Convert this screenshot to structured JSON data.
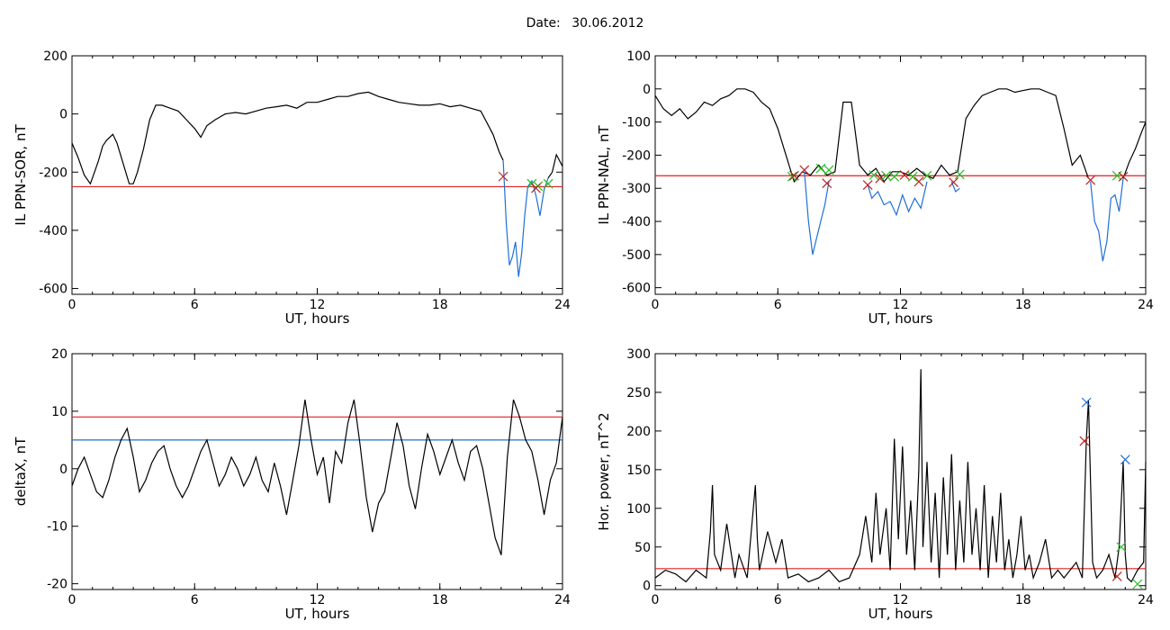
{
  "page": {
    "date_label": "Date:",
    "date_value": "30.06.2012"
  },
  "chart_data": [
    {
      "id": "ppn-sor",
      "type": "line",
      "title": "",
      "xlabel": "UT, hours",
      "ylabel": "IL PPN-SOR, nT",
      "xlim": [
        0,
        24
      ],
      "ylim": [
        -620,
        200
      ],
      "xticks": [
        0,
        6,
        12,
        18,
        24
      ],
      "yticks": [
        200,
        0,
        -200,
        -400,
        -600
      ],
      "series": [
        {
          "color": "#000000",
          "x": [
            0,
            0.3,
            0.6,
            0.9,
            1.1,
            1.3,
            1.5,
            1.7,
            2.0,
            2.2,
            2.5,
            2.8,
            3.0,
            3.2,
            3.5,
            3.8,
            4.1,
            4.4,
            4.8,
            5.2,
            5.6,
            6.0,
            6.3,
            6.6,
            7.0,
            7.5,
            8.0,
            8.5,
            9.0,
            9.5,
            10.0,
            10.5,
            11.0,
            11.5,
            12.0,
            12.5,
            13.0,
            13.5,
            14.0,
            14.5,
            15.0,
            15.5,
            16.0,
            16.5,
            17.0,
            17.5,
            18.0,
            18.5,
            19.0,
            19.5,
            20.0,
            20.3,
            20.6,
            20.9,
            21.1
          ],
          "y": [
            -100,
            -150,
            -210,
            -240,
            -200,
            -160,
            -110,
            -90,
            -70,
            -100,
            -170,
            -240,
            -240,
            -200,
            -120,
            -20,
            30,
            30,
            20,
            10,
            -20,
            -50,
            -80,
            -40,
            -20,
            0,
            5,
            0,
            10,
            20,
            25,
            30,
            20,
            40,
            40,
            50,
            60,
            60,
            70,
            75,
            60,
            50,
            40,
            35,
            30,
            30,
            35,
            25,
            30,
            20,
            10,
            -30,
            -70,
            -130,
            -160
          ]
        },
        {
          "color": "#1f6fd6",
          "x": [
            21.1,
            21.25,
            21.4,
            21.55,
            21.7,
            21.85,
            22.0,
            22.15,
            22.3,
            22.5,
            22.7,
            22.9,
            23.1,
            23.3
          ],
          "y": [
            -160,
            -380,
            -520,
            -490,
            -440,
            -560,
            -480,
            -350,
            -250,
            -230,
            -280,
            -350,
            -260,
            -220
          ]
        },
        {
          "color": "#000000",
          "x": [
            23.3,
            23.5,
            23.7,
            24.0
          ],
          "y": [
            -220,
            -200,
            -140,
            -180
          ]
        }
      ],
      "hlines": [
        {
          "y": -250,
          "color": "#e02020"
        }
      ],
      "markers": [
        {
          "x": 21.1,
          "y": -215,
          "color": "#c02020"
        },
        {
          "x": 22.5,
          "y": -240,
          "color": "#20c020"
        },
        {
          "x": 22.8,
          "y": -248,
          "color": "#20c020"
        },
        {
          "x": 23.3,
          "y": -240,
          "color": "#20c020"
        },
        {
          "x": 22.7,
          "y": -255,
          "color": "#c02020"
        }
      ]
    },
    {
      "id": "ppn-nal",
      "type": "line",
      "title": "",
      "xlabel": "UT, hours",
      "ylabel": "IL PPN-NAL, nT",
      "xlim": [
        0,
        24
      ],
      "ylim": [
        -620,
        100
      ],
      "xticks": [
        0,
        6,
        12,
        18,
        24
      ],
      "yticks": [
        100,
        0,
        -100,
        -200,
        -300,
        -400,
        -500,
        -600
      ],
      "series": [
        {
          "color": "#000000",
          "x": [
            0,
            0.4,
            0.8,
            1.2,
            1.6,
            2.0,
            2.4,
            2.8,
            3.2,
            3.6,
            4.0,
            4.4,
            4.8,
            5.2,
            5.6,
            6.0,
            6.4,
            6.8,
            7.2,
            7.6,
            8.0,
            8.4,
            8.8,
            9.2,
            9.6,
            10.0,
            10.4,
            10.8,
            11.2,
            11.6,
            12.0,
            12.4,
            12.8,
            13.2,
            13.6,
            14.0,
            14.4,
            14.8,
            15.2,
            15.6,
            16.0,
            16.4,
            16.8,
            17.2,
            17.6,
            18.0,
            18.4,
            18.8,
            19.2,
            19.6,
            20.0,
            20.4,
            20.8,
            21.2
          ],
          "y": [
            -20,
            -60,
            -80,
            -60,
            -90,
            -70,
            -40,
            -50,
            -30,
            -20,
            0,
            0,
            -10,
            -40,
            -60,
            -120,
            -200,
            -280,
            -250,
            -260,
            -230,
            -260,
            -250,
            -40,
            -40,
            -230,
            -260,
            -240,
            -280,
            -250,
            -250,
            -260,
            -240,
            -260,
            -270,
            -230,
            -260,
            -250,
            -90,
            -50,
            -20,
            -10,
            0,
            0,
            -10,
            -5,
            0,
            0,
            -10,
            -20,
            -120,
            -230,
            -200,
            -270
          ]
        },
        {
          "color": "#1f6fd6",
          "x": [
            7.3,
            7.5,
            7.7,
            7.9,
            8.1,
            8.3,
            8.5
          ],
          "y": [
            -250,
            -400,
            -500,
            -450,
            -400,
            -350,
            -280
          ],
          "segment": 1
        },
        {
          "color": "#1f6fd6",
          "x": [
            10.4,
            10.6,
            10.9,
            11.2,
            11.5,
            11.8,
            12.1,
            12.4,
            12.7,
            13.0,
            13.3
          ],
          "y": [
            -290,
            -330,
            -310,
            -350,
            -340,
            -380,
            -320,
            -370,
            -330,
            -360,
            -280
          ],
          "segment": 2
        },
        {
          "color": "#1f6fd6",
          "x": [
            14.5,
            14.7,
            14.9
          ],
          "y": [
            -280,
            -310,
            -300
          ],
          "segment": 3
        },
        {
          "color": "#1f6fd6",
          "x": [
            21.3,
            21.5,
            21.7,
            21.9,
            22.1,
            22.3,
            22.5,
            22.7,
            22.9
          ],
          "y": [
            -280,
            -400,
            -430,
            -520,
            -460,
            -330,
            -320,
            -370,
            -270
          ],
          "segment": 4
        },
        {
          "color": "#000000",
          "x": [
            22.9,
            23.2,
            23.5,
            23.8,
            24.0
          ],
          "y": [
            -270,
            -220,
            -180,
            -130,
            -100
          ],
          "segment": 5
        }
      ],
      "hlines": [
        {
          "y": -262,
          "color": "#e02020"
        }
      ],
      "markers": [
        {
          "x": 6.7,
          "y": -265,
          "color": "#20c020"
        },
        {
          "x": 6.8,
          "y": -262,
          "color": "#c02020"
        },
        {
          "x": 7.3,
          "y": -245,
          "color": "#c02020"
        },
        {
          "x": 8.1,
          "y": -240,
          "color": "#20c020"
        },
        {
          "x": 8.5,
          "y": -245,
          "color": "#20c020"
        },
        {
          "x": 8.4,
          "y": -285,
          "color": "#c02020"
        },
        {
          "x": 10.4,
          "y": -290,
          "color": "#c02020"
        },
        {
          "x": 10.7,
          "y": -260,
          "color": "#20c020"
        },
        {
          "x": 11.0,
          "y": -270,
          "color": "#c02020"
        },
        {
          "x": 11.3,
          "y": -262,
          "color": "#20c020"
        },
        {
          "x": 11.7,
          "y": -265,
          "color": "#20c020"
        },
        {
          "x": 12.2,
          "y": -260,
          "color": "#c02020"
        },
        {
          "x": 12.6,
          "y": -265,
          "color": "#20c020"
        },
        {
          "x": 12.9,
          "y": -280,
          "color": "#c02020"
        },
        {
          "x": 13.3,
          "y": -262,
          "color": "#20c020"
        },
        {
          "x": 14.6,
          "y": -282,
          "color": "#c02020"
        },
        {
          "x": 14.9,
          "y": -258,
          "color": "#20c020"
        },
        {
          "x": 21.3,
          "y": -275,
          "color": "#c02020"
        },
        {
          "x": 22.6,
          "y": -262,
          "color": "#20c020"
        },
        {
          "x": 22.9,
          "y": -265,
          "color": "#c02020"
        }
      ]
    },
    {
      "id": "deltax",
      "type": "line",
      "title": "",
      "xlabel": "UT, hours",
      "ylabel": "deltaX, nT",
      "xlim": [
        0,
        24
      ],
      "ylim": [
        -21,
        20
      ],
      "xticks": [
        0,
        6,
        12,
        18,
        24
      ],
      "yticks": [
        20,
        10,
        0,
        -10,
        -20
      ],
      "series": [
        {
          "color": "#000000",
          "x": [
            0,
            0.3,
            0.6,
            0.9,
            1.2,
            1.5,
            1.8,
            2.1,
            2.4,
            2.7,
            3.0,
            3.3,
            3.6,
            3.9,
            4.2,
            4.5,
            4.8,
            5.1,
            5.4,
            5.7,
            6.0,
            6.3,
            6.6,
            6.9,
            7.2,
            7.5,
            7.8,
            8.1,
            8.4,
            8.7,
            9.0,
            9.3,
            9.6,
            9.9,
            10.2,
            10.5,
            10.8,
            11.1,
            11.4,
            11.7,
            12.0,
            12.3,
            12.6,
            12.9,
            13.2,
            13.5,
            13.8,
            14.1,
            14.4,
            14.7,
            15.0,
            15.3,
            15.6,
            15.9,
            16.2,
            16.5,
            16.8,
            17.1,
            17.4,
            17.7,
            18.0,
            18.3,
            18.6,
            18.9,
            19.2,
            19.5,
            19.8,
            20.1,
            20.4,
            20.7,
            21.0,
            21.3,
            21.6,
            21.9,
            22.2,
            22.5,
            22.8,
            23.1,
            23.4,
            23.7,
            24.0
          ],
          "y": [
            -3,
            0,
            2,
            -1,
            -4,
            -5,
            -2,
            2,
            5,
            7,
            2,
            -4,
            -2,
            1,
            3,
            4,
            0,
            -3,
            -5,
            -3,
            0,
            3,
            5,
            1,
            -3,
            -1,
            2,
            0,
            -3,
            -1,
            2,
            -2,
            -4,
            1,
            -3,
            -8,
            -2,
            4,
            12,
            5,
            -1,
            2,
            -6,
            3,
            1,
            8,
            12,
            4,
            -5,
            -11,
            -6,
            -4,
            2,
            8,
            4,
            -3,
            -7,
            0,
            6,
            3,
            -1,
            2,
            5,
            1,
            -2,
            3,
            4,
            0,
            -6,
            -12,
            -15,
            2,
            12,
            9,
            5,
            3,
            -2,
            -8,
            -2,
            1,
            9
          ]
        }
      ],
      "hlines": [
        {
          "y": 9,
          "color": "#e02020"
        },
        {
          "y": 5,
          "color": "#1f6fd6"
        }
      ],
      "markers": []
    },
    {
      "id": "hor-power",
      "type": "line",
      "title": "",
      "xlabel": "UT, hours",
      "ylabel": "Hor. power, nT^2",
      "xlim": [
        0,
        24
      ],
      "ylim": [
        -5,
        300
      ],
      "xticks": [
        0,
        6,
        12,
        18,
        24
      ],
      "yticks": [
        300,
        250,
        200,
        150,
        100,
        50,
        0
      ],
      "series": [
        {
          "color": "#000000",
          "x": [
            0,
            0.5,
            1.0,
            1.5,
            2.0,
            2.5,
            2.7,
            2.8,
            2.9,
            3.2,
            3.5,
            3.9,
            4.1,
            4.5,
            4.9,
            5.0,
            5.1,
            5.5,
            5.9,
            6.2,
            6.5,
            7.0,
            7.5,
            8.0,
            8.5,
            9.0,
            9.5,
            10.0,
            10.3,
            10.6,
            10.8,
            11.0,
            11.3,
            11.5,
            11.7,
            11.9,
            12.1,
            12.3,
            12.5,
            12.7,
            12.9,
            13.0,
            13.1,
            13.3,
            13.5,
            13.7,
            13.9,
            14.1,
            14.3,
            14.5,
            14.7,
            14.9,
            15.1,
            15.3,
            15.5,
            15.7,
            15.9,
            16.1,
            16.3,
            16.5,
            16.7,
            16.9,
            17.1,
            17.3,
            17.5,
            17.7,
            17.9,
            18.1,
            18.3,
            18.5,
            18.8,
            19.1,
            19.4,
            19.7,
            20.0,
            20.3,
            20.6,
            20.9,
            21.1,
            21.2,
            21.4,
            21.6,
            21.9,
            22.2,
            22.5,
            22.7,
            22.9,
            23.0,
            23.1,
            23.3,
            23.6,
            23.9,
            24.0
          ],
          "y": [
            10,
            20,
            15,
            5,
            20,
            10,
            70,
            130,
            40,
            20,
            80,
            10,
            40,
            10,
            130,
            60,
            20,
            70,
            30,
            60,
            10,
            15,
            5,
            10,
            20,
            5,
            10,
            40,
            90,
            30,
            120,
            40,
            100,
            20,
            190,
            60,
            180,
            40,
            110,
            20,
            150,
            280,
            50,
            160,
            30,
            120,
            10,
            140,
            40,
            170,
            20,
            110,
            30,
            160,
            40,
            100,
            20,
            130,
            10,
            90,
            30,
            120,
            20,
            60,
            10,
            40,
            90,
            20,
            40,
            10,
            30,
            60,
            10,
            20,
            10,
            20,
            30,
            10,
            190,
            240,
            30,
            10,
            20,
            40,
            10,
            50,
            160,
            40,
            10,
            5,
            20,
            30,
            160
          ]
        }
      ],
      "hlines": [
        {
          "y": 22,
          "color": "#e02020"
        }
      ],
      "markers": [
        {
          "x": 21.1,
          "y": 237,
          "color": "#1f6fd6"
        },
        {
          "x": 21.0,
          "y": 187,
          "color": "#c02020"
        },
        {
          "x": 23.0,
          "y": 163,
          "color": "#1f6fd6"
        },
        {
          "x": 22.8,
          "y": 50,
          "color": "#20c020"
        },
        {
          "x": 22.6,
          "y": 12,
          "color": "#c02020"
        },
        {
          "x": 23.6,
          "y": 2,
          "color": "#20c020"
        }
      ]
    }
  ]
}
